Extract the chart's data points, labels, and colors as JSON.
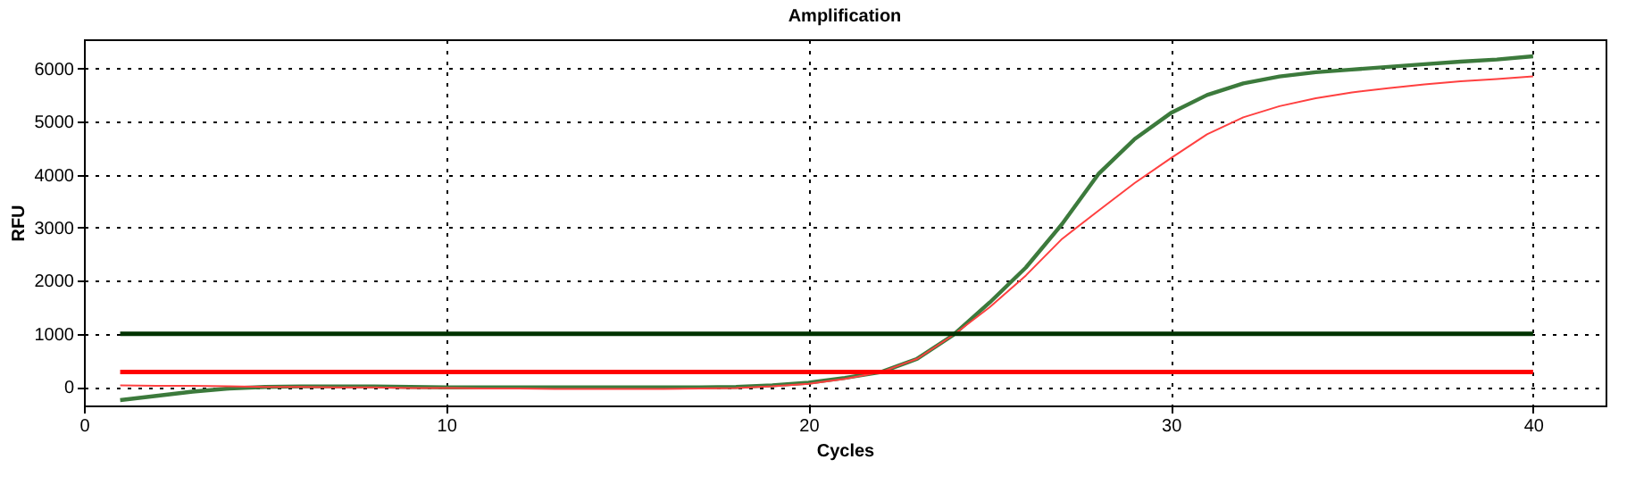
{
  "chart_data": {
    "type": "line",
    "title": "Amplification",
    "xlabel": "Cycles",
    "ylabel": "RFU",
    "x": [
      1,
      2,
      3,
      4,
      5,
      6,
      7,
      8,
      9,
      10,
      11,
      12,
      13,
      14,
      15,
      16,
      17,
      18,
      19,
      20,
      21,
      22,
      23,
      24,
      25,
      26,
      27,
      28,
      29,
      30,
      31,
      32,
      33,
      34,
      35,
      36,
      37,
      38,
      39,
      40
    ],
    "series": [
      {
        "color": "#3c7a3c",
        "values": [
          -250,
          -170,
          -90,
          -30,
          0,
          10,
          10,
          10,
          0,
          -10,
          -10,
          -10,
          -10,
          -10,
          -10,
          -10,
          -10,
          0,
          30,
          80,
          170,
          280,
          530,
          980,
          1590,
          2250,
          3070,
          4010,
          4670,
          5160,
          5500,
          5720,
          5850,
          5930,
          5980,
          6030,
          6080,
          6130,
          6170,
          6230
        ]
      },
      {
        "color": "#ff4040",
        "values": [
          30,
          20,
          20,
          10,
          0,
          0,
          -10,
          -10,
          -20,
          -20,
          -30,
          -30,
          -40,
          -40,
          -40,
          -40,
          -30,
          -20,
          10,
          60,
          150,
          280,
          530,
          980,
          1500,
          2100,
          2790,
          3320,
          3840,
          4310,
          4760,
          5080,
          5290,
          5440,
          5550,
          5630,
          5700,
          5760,
          5800,
          5850
        ]
      }
    ],
    "ref_lines": [
      {
        "axis": "y",
        "value": 1000,
        "color": "#003300"
      },
      {
        "axis": "y",
        "value": 280,
        "color": "#ff0000"
      }
    ],
    "xlim": [
      0,
      42
    ],
    "xticks": [
      0,
      10,
      20,
      30,
      40
    ],
    "ylim": [
      -350,
      6550
    ],
    "yticks": [
      0,
      1000,
      2000,
      3000,
      4000,
      5000,
      6000
    ],
    "grid": true,
    "line_style": "solid"
  }
}
